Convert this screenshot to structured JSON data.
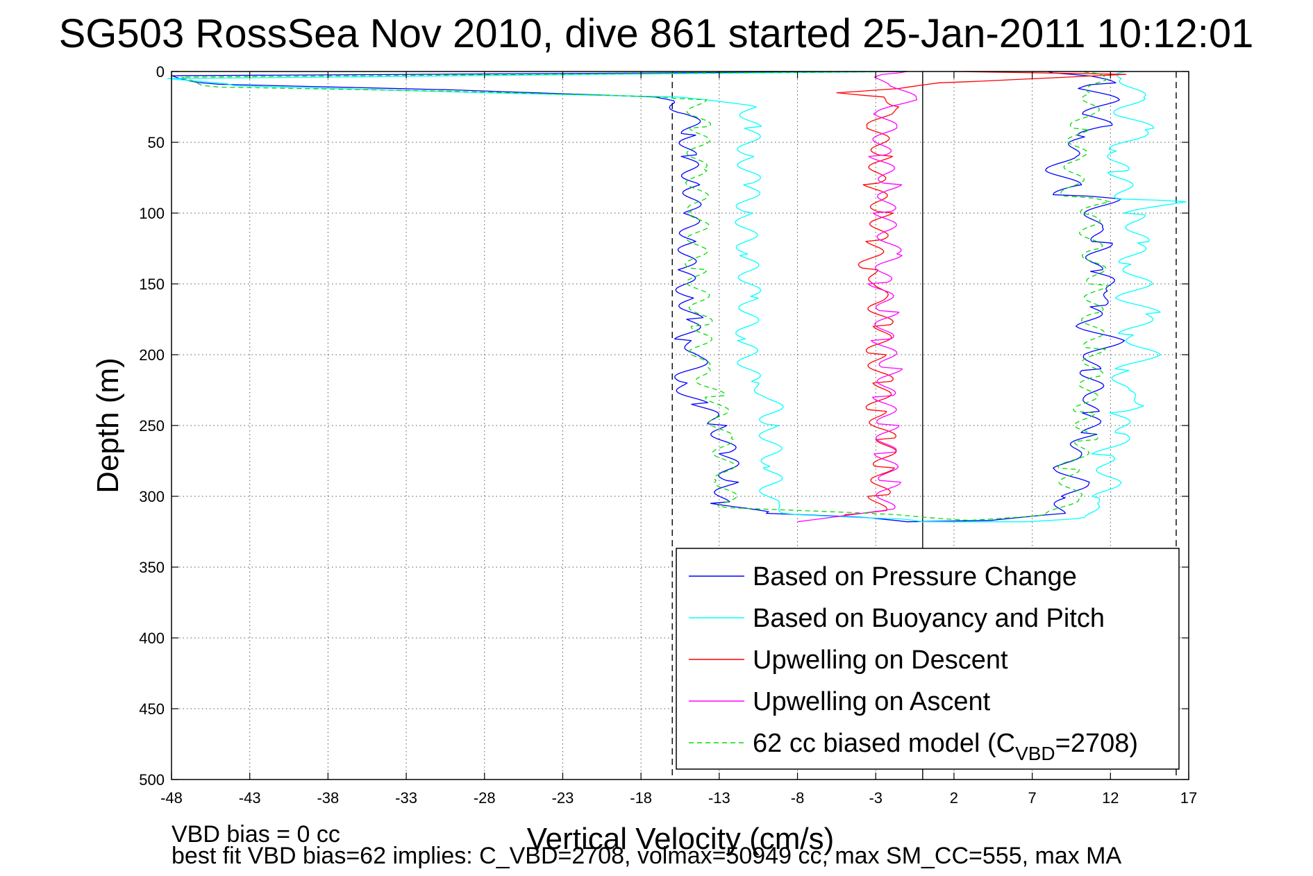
{
  "chart_data": {
    "type": "line",
    "title": "SG503 RossSea Nov 2010, dive 861 started 25-Jan-2011 10:12:01",
    "xlabel": "Vertical Velocity (cm/s)",
    "ylabel": "Depth (m)",
    "xlim": [
      -48,
      17
    ],
    "ylim": [
      0,
      500
    ],
    "y_reversed": true,
    "grid": "dotted",
    "xticks": [
      -48,
      -43,
      -38,
      -33,
      -28,
      -23,
      -18,
      -13,
      -8,
      -3,
      2,
      7,
      12,
      17
    ],
    "yticks": [
      0,
      50,
      100,
      150,
      200,
      250,
      300,
      350,
      400,
      450,
      500
    ],
    "reference_lines": [
      {
        "x": -16,
        "style": "dashed",
        "color": "#000000"
      },
      {
        "x": 0,
        "style": "solid",
        "color": "#000000"
      },
      {
        "x": 16.2,
        "style": "dashed",
        "color": "#000000"
      }
    ],
    "legend_position": "lower-right",
    "legend": [
      {
        "label": "Based on Pressure Change",
        "color": "#0000ff",
        "dash": false
      },
      {
        "label": "Based on Buoyancy and Pitch",
        "color": "#00ffff",
        "dash": false
      },
      {
        "label": "Upwelling on Descent",
        "color": "#ff0000",
        "dash": false
      },
      {
        "label": "Upwelling on Ascent",
        "color": "#ff00ff",
        "dash": false
      },
      {
        "label_pre": "62 cc biased model (C",
        "label_sub": "VBD",
        "label_post": "=2708)",
        "color": "#00dd00",
        "dash": true
      }
    ],
    "series": [
      {
        "color": "#0000ff",
        "points": [
          [
            -1,
            0
          ],
          [
            -48,
            3
          ],
          [
            -45,
            9
          ],
          [
            -30,
            13
          ],
          [
            -17,
            18
          ],
          [
            -16,
            22
          ],
          [
            -15,
            30
          ],
          [
            -14.7,
            45
          ],
          [
            -15.2,
            60
          ],
          [
            -14.5,
            80
          ],
          [
            -15,
            100
          ],
          [
            -14.8,
            120
          ],
          [
            -15.3,
            140
          ],
          [
            -15,
            160
          ],
          [
            -14.7,
            175
          ],
          [
            -15.2,
            190
          ],
          [
            -14,
            200
          ],
          [
            -15.5,
            220
          ],
          [
            -14.3,
            235
          ],
          [
            -13,
            250
          ],
          [
            -12.5,
            270
          ],
          [
            -12.3,
            290
          ],
          [
            -13,
            305
          ],
          [
            -10,
            312
          ],
          [
            -3,
            315
          ],
          [
            -1,
            318
          ],
          [
            5,
            317
          ],
          [
            8.5,
            312
          ],
          [
            9.5,
            300
          ],
          [
            10,
            290
          ],
          [
            9,
            280
          ],
          [
            9.5,
            270
          ],
          [
            10.8,
            255
          ],
          [
            10.6,
            240
          ],
          [
            11,
            230
          ],
          [
            10.7,
            210
          ],
          [
            11,
            200
          ],
          [
            12.2,
            190
          ],
          [
            10.5,
            180
          ],
          [
            11,
            165
          ],
          [
            12.5,
            155
          ],
          [
            10.8,
            140
          ],
          [
            11.5,
            120
          ],
          [
            10.8,
            110
          ],
          [
            11,
            100
          ],
          [
            12,
            90
          ],
          [
            9,
            87
          ],
          [
            9.5,
            80
          ],
          [
            8.5,
            70
          ],
          [
            9.2,
            60
          ],
          [
            10.5,
            45
          ],
          [
            11.5,
            38
          ],
          [
            10.8,
            30
          ],
          [
            12,
            20
          ],
          [
            10.5,
            12
          ],
          [
            11.8,
            8
          ],
          [
            10,
            2
          ],
          [
            8,
            0
          ]
        ]
      },
      {
        "color": "#00ffff",
        "points": [
          [
            -1,
            0
          ],
          [
            -48,
            5
          ],
          [
            -44,
            10
          ],
          [
            -28,
            15
          ],
          [
            -16,
            18
          ],
          [
            -13.5,
            20
          ],
          [
            -11,
            25
          ],
          [
            -11,
            40
          ],
          [
            -11.2,
            60
          ],
          [
            -11,
            80
          ],
          [
            -11.3,
            100
          ],
          [
            -11.2,
            130
          ],
          [
            -11,
            160
          ],
          [
            -11.3,
            190
          ],
          [
            -11,
            220
          ],
          [
            -9.5,
            230
          ],
          [
            -9.8,
            250
          ],
          [
            -9.6,
            280
          ],
          [
            -9.8,
            305
          ],
          [
            -8,
            313
          ],
          [
            -2,
            316
          ],
          [
            0,
            318
          ],
          [
            6,
            318
          ],
          [
            11,
            315
          ],
          [
            10.5,
            305
          ],
          [
            11.5,
            300
          ],
          [
            12,
            290
          ],
          [
            11.5,
            270
          ],
          [
            12.5,
            260
          ],
          [
            13,
            255
          ],
          [
            12.2,
            240
          ],
          [
            14.5,
            235
          ],
          [
            12.5,
            225
          ],
          [
            13,
            210
          ],
          [
            14.5,
            200
          ],
          [
            13.2,
            185
          ],
          [
            14.5,
            170
          ],
          [
            13,
            160
          ],
          [
            14,
            150
          ],
          [
            13.2,
            135
          ],
          [
            13.8,
            120
          ],
          [
            13.5,
            100
          ],
          [
            16.2,
            92
          ],
          [
            13,
            90
          ],
          [
            12.5,
            70
          ],
          [
            12.5,
            55
          ],
          [
            14.2,
            40
          ],
          [
            12.8,
            30
          ],
          [
            13.6,
            18
          ],
          [
            13.2,
            5
          ],
          [
            13,
            0
          ]
        ]
      },
      {
        "color": "#ff0000",
        "points": [
          [
            2,
            0
          ],
          [
            13,
            2
          ],
          [
            1.5,
            8
          ],
          [
            -2,
            12
          ],
          [
            -5,
            15
          ],
          [
            -3,
            18
          ],
          [
            -1,
            25
          ],
          [
            -2.5,
            30
          ],
          [
            -3,
            40
          ],
          [
            -2.5,
            60
          ],
          [
            -3.2,
            80
          ],
          [
            -2.5,
            100
          ],
          [
            -3,
            120
          ],
          [
            -3.5,
            140
          ],
          [
            -2.5,
            150
          ],
          [
            -3,
            160
          ],
          [
            -2.5,
            180
          ],
          [
            -3,
            200
          ],
          [
            -2.5,
            220
          ],
          [
            -3,
            240
          ],
          [
            -2.3,
            260
          ],
          [
            -2.5,
            280
          ],
          [
            -2.8,
            300
          ],
          [
            -3,
            310
          ],
          [
            -5,
            313
          ]
        ]
      },
      {
        "color": "#ff00ff",
        "points": [
          [
            -1,
            0
          ],
          [
            -2,
            2
          ],
          [
            -3.5,
            5
          ],
          [
            -1.5,
            10
          ],
          [
            -1,
            20
          ],
          [
            -2.5,
            30
          ],
          [
            -2.3,
            40
          ],
          [
            -2.8,
            60
          ],
          [
            -2,
            80
          ],
          [
            -2.5,
            100
          ],
          [
            -2,
            130
          ],
          [
            -2.8,
            150
          ],
          [
            -2.2,
            170
          ],
          [
            -2.6,
            190
          ],
          [
            -2,
            210
          ],
          [
            -2.5,
            230
          ],
          [
            -2.2,
            250
          ],
          [
            -2.4,
            270
          ],
          [
            -2.1,
            290
          ],
          [
            -2.5,
            310
          ],
          [
            -8,
            318
          ]
        ]
      },
      {
        "color": "#00dd00",
        "dash": true,
        "points": [
          [
            -1,
            0
          ],
          [
            -48,
            4
          ],
          [
            -45,
            11
          ],
          [
            -30,
            14
          ],
          [
            -16,
            18
          ],
          [
            -14.5,
            20
          ],
          [
            -14.2,
            40
          ],
          [
            -14.5,
            70
          ],
          [
            -14.3,
            100
          ],
          [
            -14.5,
            140
          ],
          [
            -14.1,
            180
          ],
          [
            -14.3,
            210
          ],
          [
            -13.2,
            230
          ],
          [
            -12.8,
            260
          ],
          [
            -12.6,
            290
          ],
          [
            -12.5,
            308
          ],
          [
            -1,
            313
          ],
          [
            3,
            317
          ],
          [
            8.5,
            313
          ],
          [
            9.5,
            300
          ],
          [
            9.3,
            280
          ],
          [
            10.5,
            260
          ],
          [
            10.3,
            240
          ],
          [
            10.8,
            215
          ],
          [
            11,
            195
          ],
          [
            10.8,
            170
          ],
          [
            11.2,
            150
          ],
          [
            10.8,
            125
          ],
          [
            10.6,
            100
          ],
          [
            11.5,
            92
          ],
          [
            9.5,
            88
          ],
          [
            9.8,
            60
          ],
          [
            10,
            40
          ],
          [
            10.5,
            30
          ],
          [
            11,
            15
          ],
          [
            11.5,
            5
          ],
          [
            10,
            0
          ]
        ]
      }
    ]
  },
  "footer": {
    "line1": "VBD bias = 0 cc",
    "line2": "best fit VBD bias=62 implies: C_VBD=2708, volmax=50949 cc, max SM_CC=555, max MA"
  }
}
